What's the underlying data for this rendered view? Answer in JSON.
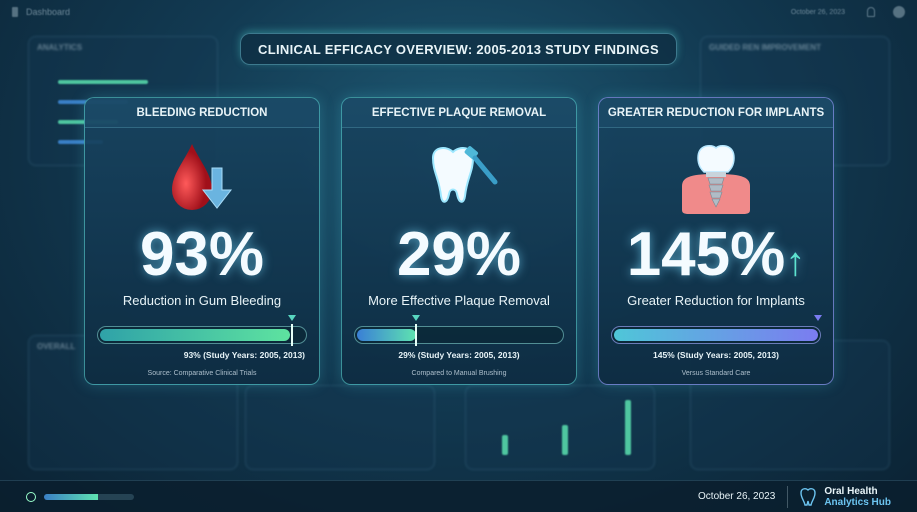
{
  "header": {
    "app_title": "Dashboard",
    "date": "October 26, 2023"
  },
  "background_panels": [
    "ANALYTICS",
    "OVERALL",
    "GUIDED REN IMPROVEMENT"
  ],
  "title": "CLINICAL EFFICACY OVERVIEW: 2005-2013 STUDY FINDINGS",
  "cards": [
    {
      "header": "BLEEDING REDUCTION",
      "icon": "blood-drop-down-arrow-icon",
      "value": "93%",
      "subtitle": "Reduction in Gum Bleeding",
      "progress_percent": 93,
      "stat": "93% (Study Years: 2005, 2013)",
      "source": "Source: Comparative Clinical Trials"
    },
    {
      "header": "EFFECTIVE PLAQUE REMOVAL",
      "icon": "tooth-toothbrush-icon",
      "value": "29%",
      "subtitle": "More Effective Plaque Removal",
      "progress_percent": 29,
      "stat": "29% (Study Years: 2005, 2013)",
      "source": "Compared to Manual Brushing"
    },
    {
      "header": "GREATER REDUCTION FOR IMPLANTS",
      "icon": "dental-implant-icon",
      "value": "145%",
      "subtitle": "Greater Reduction for Implants",
      "progress_percent": 100,
      "stat": "145% (Study Years: 2005, 2013)",
      "source": "Versus Standard Care"
    }
  ],
  "footer": {
    "date": "October 26, 2023",
    "brand_line1": "Oral Health",
    "brand_line2": "Analytics Hub",
    "progress_percent": 60
  },
  "colors": {
    "accent_teal": "#5ee3b0",
    "accent_blue": "#3a7fc6",
    "accent_purple": "#7b7cf0",
    "blood_red": "#d8202a"
  }
}
